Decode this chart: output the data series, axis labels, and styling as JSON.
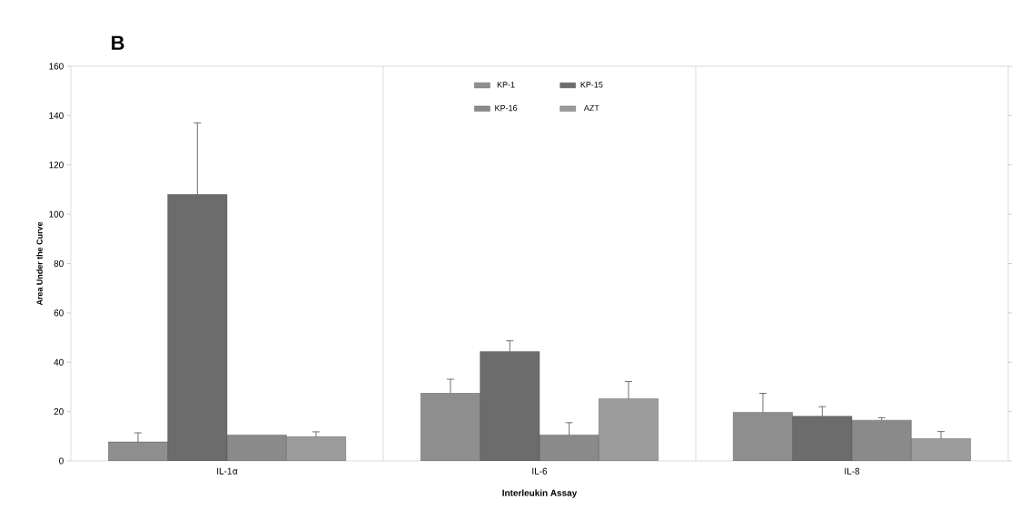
{
  "chart_data": {
    "type": "bar",
    "title": "B",
    "xlabel": "Interleukin Assay",
    "ylabel": "Area Under the Curve",
    "categories": [
      "IL-1$_{}$α",
      "IL-6",
      "IL-8"
    ],
    "series": [
      {
        "name": "KP-1",
        "color": "#8e8e8e",
        "values": [
          7.7,
          27.5,
          19.7
        ],
        "errors": [
          3.7,
          5.6,
          7.7
        ]
      },
      {
        "name": "KP-15",
        "color": "#6c6c6c",
        "values": [
          108,
          44.3,
          18.1
        ],
        "errors": [
          29,
          4.4,
          3.9
        ]
      },
      {
        "name": "KP-16",
        "color": "#8a8a8a",
        "values": [
          10.5,
          10.5,
          16.5
        ],
        "errors": [
          null,
          5,
          1
        ]
      },
      {
        "name": "AZT",
        "color": "#9c9c9c",
        "values": [
          9.8,
          25.2,
          9.0
        ],
        "errors": [
          2,
          7,
          2.9
        ]
      }
    ],
    "ylim": [
      0,
      160
    ],
    "yticks": [
      0,
      20,
      40,
      60,
      80,
      100,
      120,
      140,
      160
    ],
    "grid": "x",
    "legend": "top"
  }
}
